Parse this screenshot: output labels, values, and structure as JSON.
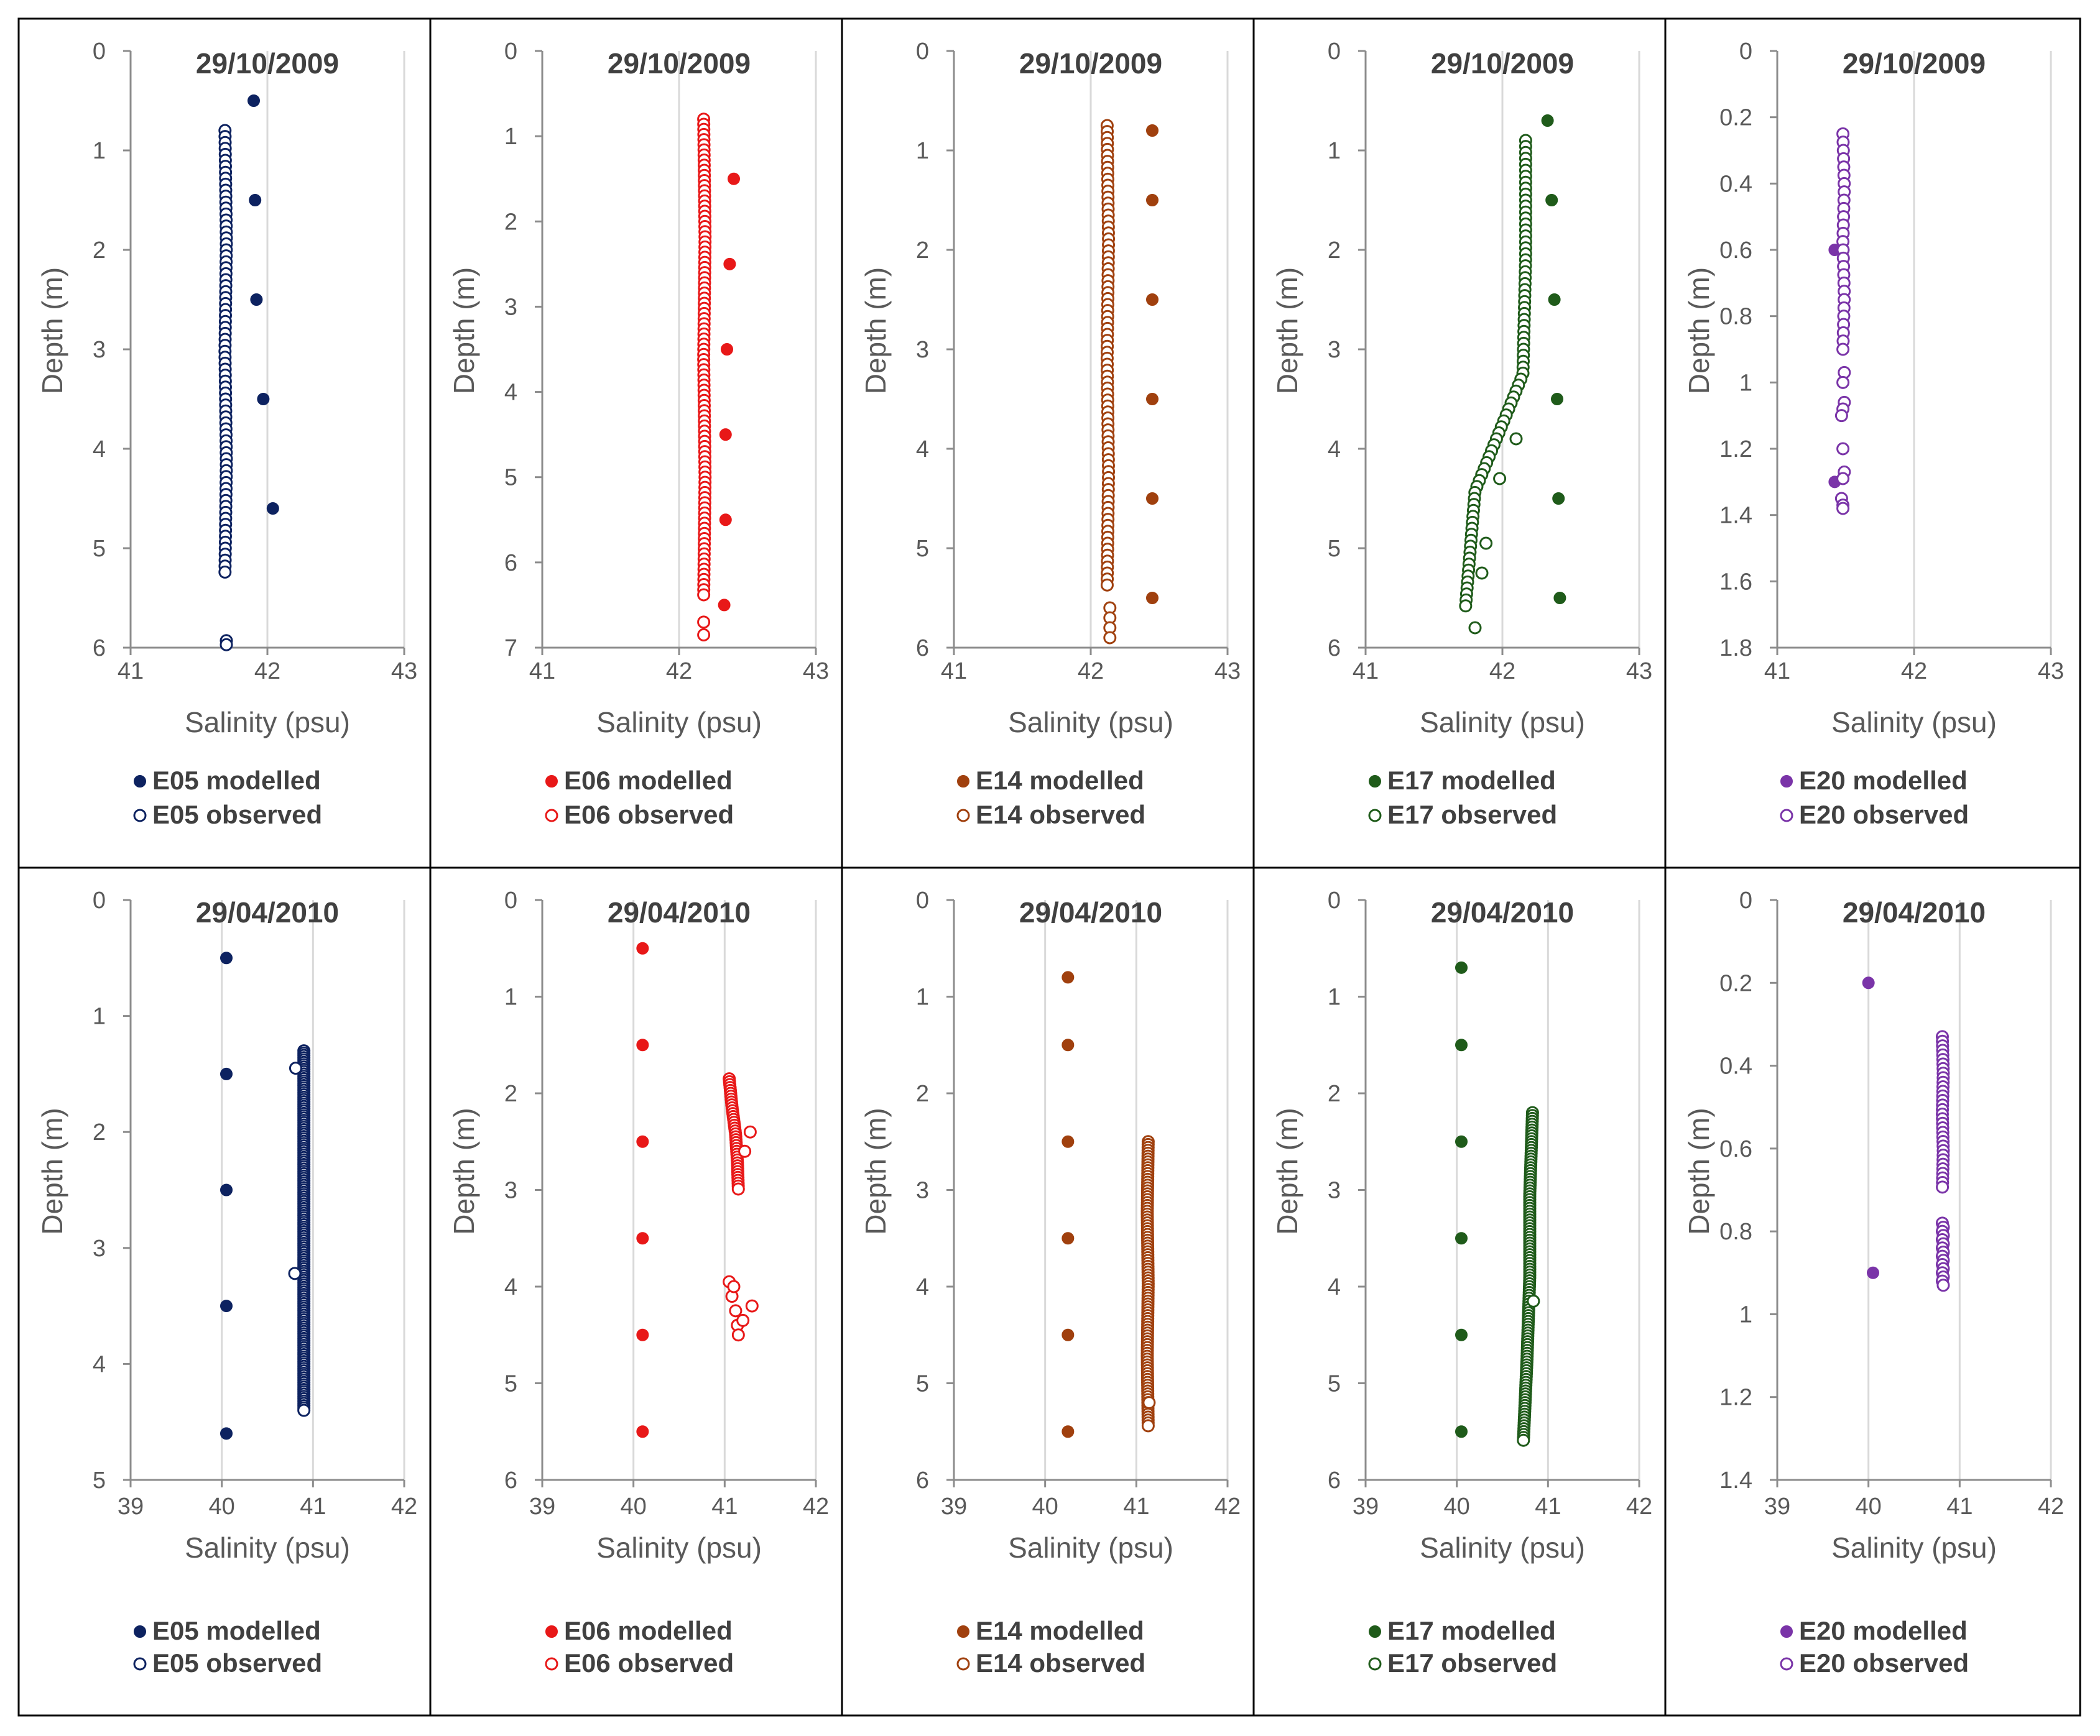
{
  "figure": {
    "colors": {
      "E05": "#0d2260",
      "E06": "#e81818",
      "E14": "#a0400e",
      "E17": "#1f5b1a",
      "E20": "#7a34a8",
      "axis": "#8c8c8c",
      "text": "#595959",
      "title": "#404040",
      "legend": "#404040",
      "frame": "#000000"
    }
  },
  "chart_data": [
    {
      "id": "r1c1",
      "type": "scatter",
      "title": "29/10/2009",
      "xlabel": "Salinity (psu)",
      "ylabel": "Depth (m)",
      "xlim": [
        41,
        43
      ],
      "ylim": [
        0,
        6
      ],
      "y_inverted": true,
      "xticks": [
        "41",
        "42",
        "43"
      ],
      "yticks": [
        "0",
        "1",
        "2",
        "3",
        "4",
        "5",
        "6"
      ],
      "series": [
        {
          "name": "E05 modelled",
          "marker": "filled",
          "x": [
            41.9,
            41.91,
            41.92,
            41.97,
            42.04
          ],
          "y": [
            0.5,
            1.5,
            2.5,
            3.5,
            4.6
          ]
        },
        {
          "name": "E05 observed",
          "marker": "open",
          "profile": {
            "x_at": [
              41.69,
              41.7,
              41.69,
              41.7,
              41.69
            ],
            "depth_from": 0.8,
            "depth_to": 5.25,
            "step": 0.06
          },
          "x": [
            41.7,
            41.7
          ],
          "y": [
            5.93,
            5.97
          ]
        }
      ]
    },
    {
      "id": "r1c2",
      "type": "scatter",
      "title": "29/10/2009",
      "xlabel": "Salinity (psu)",
      "ylabel": "Depth (m)",
      "xlim": [
        41,
        43
      ],
      "ylim": [
        0,
        7
      ],
      "y_inverted": true,
      "xticks": [
        "41",
        "42",
        "43"
      ],
      "yticks": [
        "0",
        "1",
        "2",
        "3",
        "4",
        "5",
        "6",
        "7"
      ],
      "series": [
        {
          "name": "E06 modelled",
          "marker": "filled",
          "x": [
            42.4,
            42.37,
            42.35,
            42.34,
            42.34,
            42.33
          ],
          "y": [
            1.5,
            2.5,
            3.5,
            4.5,
            5.5,
            6.5
          ]
        },
        {
          "name": "E06 observed",
          "marker": "open",
          "profile": {
            "x_at": [
              42.18,
              42.19,
              42.18,
              42.19,
              42.18
            ],
            "depth_from": 0.8,
            "depth_to": 6.4,
            "step": 0.06
          },
          "x": [
            42.18,
            42.18
          ],
          "y": [
            6.7,
            6.85
          ]
        }
      ]
    },
    {
      "id": "r1c3",
      "type": "scatter",
      "title": "29/10/2009",
      "xlabel": "Salinity (psu)",
      "ylabel": "Depth (m)",
      "xlim": [
        41,
        43
      ],
      "ylim": [
        0,
        6
      ],
      "y_inverted": true,
      "xticks": [
        "41",
        "42",
        "43"
      ],
      "yticks": [
        "0",
        "1",
        "2",
        "3",
        "4",
        "5",
        "6"
      ],
      "series": [
        {
          "name": "E14 modelled",
          "marker": "filled",
          "x": [
            42.45,
            42.45,
            42.45,
            42.45,
            42.45,
            42.45
          ],
          "y": [
            0.8,
            1.5,
            2.5,
            3.5,
            4.5,
            5.5
          ]
        },
        {
          "name": "E14 observed",
          "marker": "open",
          "profile": {
            "x_at": [
              42.12,
              42.13,
              42.12,
              42.13,
              42.12
            ],
            "depth_from": 0.75,
            "depth_to": 5.4,
            "step": 0.06
          },
          "x": [
            42.14,
            42.14,
            42.14,
            42.14
          ],
          "y": [
            5.6,
            5.7,
            5.8,
            5.9
          ]
        }
      ]
    },
    {
      "id": "r1c4",
      "type": "scatter",
      "title": "29/10/2009",
      "xlabel": "Salinity (psu)",
      "ylabel": "Depth (m)",
      "xlim": [
        41,
        43
      ],
      "ylim": [
        0,
        6
      ],
      "y_inverted": true,
      "xticks": [
        "41",
        "42",
        "43"
      ],
      "yticks": [
        "0",
        "1",
        "2",
        "3",
        "4",
        "5",
        "6"
      ],
      "series": [
        {
          "name": "E17 modelled",
          "marker": "filled",
          "x": [
            42.33,
            42.36,
            42.38,
            42.4,
            42.41,
            42.42
          ],
          "y": [
            0.7,
            1.5,
            2.5,
            3.5,
            4.5,
            5.5
          ]
        },
        {
          "name": "E17 observed",
          "marker": "open",
          "profile": {
            "x_at": [
              42.17,
              42.17,
              42.15,
              41.8,
              41.73
            ],
            "depth_from": 0.9,
            "depth_to": 5.6,
            "step": 0.06
          },
          "x": [
            41.8,
            41.88,
            41.85,
            41.98,
            42.1
          ],
          "y": [
            5.8,
            4.95,
            5.25,
            4.3,
            3.9
          ]
        }
      ]
    },
    {
      "id": "r1c5",
      "type": "scatter",
      "title": "29/10/2009",
      "xlabel": "Salinity (psu)",
      "ylabel": "Depth (m)",
      "xlim": [
        41,
        43
      ],
      "ylim": [
        0,
        1.8
      ],
      "y_inverted": true,
      "xticks": [
        "41",
        "42",
        "43"
      ],
      "yticks": [
        "0",
        "0.2",
        "0.4",
        "0.6",
        "0.8",
        "1",
        "1.2",
        "1.4",
        "1.6",
        "1.8"
      ],
      "series": [
        {
          "name": "E20 modelled",
          "marker": "filled",
          "x": [
            41.42,
            41.42
          ],
          "y": [
            0.6,
            1.3
          ]
        },
        {
          "name": "E20 observed",
          "marker": "open",
          "profile": {
            "x_at": [
              41.48,
              41.49,
              41.48,
              41.49,
              41.48
            ],
            "depth_from": 0.25,
            "depth_to": 0.9,
            "step": 0.025
          },
          "x": [
            41.49,
            41.48,
            41.49,
            41.48,
            41.47,
            41.48,
            41.49,
            41.48,
            41.47,
            41.48,
            41.48
          ],
          "y": [
            0.97,
            1.0,
            1.06,
            1.08,
            1.1,
            1.2,
            1.27,
            1.29,
            1.35,
            1.37,
            1.38
          ]
        }
      ]
    },
    {
      "id": "r2c1",
      "type": "scatter",
      "title": "29/04/2010",
      "xlabel": "Salinity (psu)",
      "ylabel": "Depth (m)",
      "xlim": [
        39,
        42
      ],
      "ylim": [
        0,
        5
      ],
      "y_inverted": true,
      "xticks": [
        "39",
        "40",
        "41",
        "42"
      ],
      "yticks": [
        "0",
        "1",
        "2",
        "3",
        "4",
        "5"
      ],
      "series": [
        {
          "name": "E05 modelled",
          "marker": "filled",
          "x": [
            40.05,
            40.05,
            40.05,
            40.05,
            40.05
          ],
          "y": [
            0.5,
            1.5,
            2.5,
            3.5,
            4.6
          ]
        },
        {
          "name": "E05 observed",
          "marker": "open",
          "profile": {
            "x_at": [
              40.9,
              40.9,
              40.9,
              40.9,
              40.9
            ],
            "depth_from": 1.3,
            "depth_to": 4.4,
            "step": 0.02
          },
          "x": [
            40.81,
            40.8
          ],
          "y": [
            1.45,
            3.22
          ]
        }
      ]
    },
    {
      "id": "r2c2",
      "type": "scatter",
      "title": "29/04/2010",
      "xlabel": "Salinity (psu)",
      "ylabel": "Depth (m)",
      "xlim": [
        39,
        42
      ],
      "ylim": [
        0,
        6
      ],
      "y_inverted": true,
      "xticks": [
        "39",
        "40",
        "41",
        "42"
      ],
      "yticks": [
        "0",
        "1",
        "2",
        "3",
        "4",
        "5",
        "6"
      ],
      "series": [
        {
          "name": "E06 modelled",
          "marker": "filled",
          "x": [
            40.1,
            40.1,
            40.1,
            40.1,
            40.1,
            40.1
          ],
          "y": [
            0.5,
            1.5,
            2.5,
            3.5,
            4.5,
            5.5
          ]
        },
        {
          "name": "E06 observed",
          "marker": "open",
          "profile": {
            "x_at": [
              41.05,
              41.08,
              41.12,
              41.14,
              41.15
            ],
            "depth_from": 1.85,
            "depth_to": 3.0,
            "step": 0.03
          },
          "x": [
            41.05,
            41.08,
            41.12,
            41.14,
            41.15,
            41.28,
            41.3,
            41.22,
            41.1,
            41.2
          ],
          "y": [
            3.95,
            4.1,
            4.25,
            4.4,
            4.5,
            2.4,
            4.2,
            2.6,
            4.0,
            4.35
          ]
        }
      ]
    },
    {
      "id": "r2c3",
      "type": "scatter",
      "title": "29/04/2010",
      "xlabel": "Salinity (psu)",
      "ylabel": "Depth (m)",
      "xlim": [
        39,
        42
      ],
      "ylim": [
        0,
        6
      ],
      "y_inverted": true,
      "xticks": [
        "39",
        "40",
        "41",
        "42"
      ],
      "yticks": [
        "0",
        "1",
        "2",
        "3",
        "4",
        "5",
        "6"
      ],
      "series": [
        {
          "name": "E14 modelled",
          "marker": "filled",
          "x": [
            40.25,
            40.25,
            40.25,
            40.25,
            40.25,
            40.25
          ],
          "y": [
            0.8,
            1.5,
            2.5,
            3.5,
            4.5,
            5.5
          ]
        },
        {
          "name": "E14 observed",
          "marker": "open",
          "profile": {
            "x_at": [
              41.13,
              41.12,
              41.13,
              41.12,
              41.13
            ],
            "depth_from": 2.5,
            "depth_to": 5.45,
            "step": 0.03
          },
          "x": [
            41.14
          ],
          "y": [
            5.2
          ]
        }
      ]
    },
    {
      "id": "r2c4",
      "type": "scatter",
      "title": "29/04/2010",
      "xlabel": "Salinity (psu)",
      "ylabel": "Depth (m)",
      "xlim": [
        39,
        42
      ],
      "ylim": [
        0,
        6
      ],
      "y_inverted": true,
      "xticks": [
        "39",
        "40",
        "41",
        "42"
      ],
      "yticks": [
        "0",
        "1",
        "2",
        "3",
        "4",
        "5",
        "6"
      ],
      "series": [
        {
          "name": "E17 modelled",
          "marker": "filled",
          "x": [
            40.05,
            40.05,
            40.05,
            40.05,
            40.05,
            40.05
          ],
          "y": [
            0.7,
            1.5,
            2.5,
            3.5,
            4.5,
            5.5
          ]
        },
        {
          "name": "E17 observed",
          "marker": "open",
          "profile": {
            "x_at": [
              40.83,
              40.8,
              40.8,
              40.77,
              40.73
            ],
            "depth_from": 2.2,
            "depth_to": 5.6,
            "step": 0.03
          },
          "x": [
            40.84
          ],
          "y": [
            4.15
          ]
        }
      ]
    },
    {
      "id": "r2c5",
      "type": "scatter",
      "title": "29/04/2010",
      "xlabel": "Salinity (psu)",
      "ylabel": "Depth (m)",
      "xlim": [
        39,
        42
      ],
      "ylim": [
        0,
        1.4
      ],
      "y_inverted": true,
      "xticks": [
        "39",
        "40",
        "41",
        "42"
      ],
      "yticks": [
        "0",
        "0.2",
        "0.4",
        "0.6",
        "0.8",
        "1",
        "1.2",
        "1.4"
      ],
      "series": [
        {
          "name": "E20 modelled",
          "marker": "filled",
          "x": [
            40.0,
            40.05
          ],
          "y": [
            0.2,
            0.9
          ]
        },
        {
          "name": "E20 observed",
          "marker": "open",
          "profile": {
            "x_at": [
              40.81,
              40.82,
              40.81,
              40.82,
              40.81
            ],
            "depth_from": 0.33,
            "depth_to": 0.7,
            "step": 0.011
          },
          "x": [
            40.81,
            40.82,
            40.81,
            40.82,
            40.81,
            40.82,
            40.81,
            40.82,
            40.81,
            40.82,
            40.81,
            40.82,
            40.81,
            40.82,
            40.81,
            40.82
          ],
          "y": [
            0.78,
            0.79,
            0.8,
            0.81,
            0.82,
            0.83,
            0.84,
            0.85,
            0.86,
            0.87,
            0.88,
            0.89,
            0.9,
            0.91,
            0.92,
            0.93
          ]
        }
      ]
    }
  ]
}
